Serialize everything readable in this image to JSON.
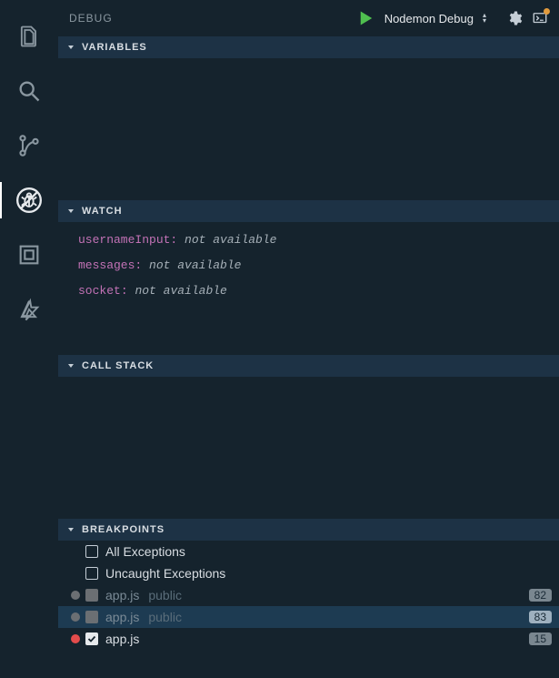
{
  "colors": {
    "bg": "#15232d",
    "section_header_bg": "#1d3245",
    "selected_row_bg": "#1d3b52",
    "text": "#c5ced6",
    "muted": "#8a97a0",
    "watch_name": "#c372b6",
    "run_green": "#4fbf4f",
    "dot_orange": "#e29b3d",
    "dot_red": "#e34c4c",
    "dot_grey": "#6b6f73",
    "line_badge_bg": "#7a8790"
  },
  "activitybar": {
    "items": [
      {
        "name": "explorer-icon",
        "active": false
      },
      {
        "name": "search-icon",
        "active": false
      },
      {
        "name": "source-control-icon",
        "active": false
      },
      {
        "name": "debug-icon",
        "active": true
      },
      {
        "name": "extensions-icon",
        "active": false
      },
      {
        "name": "azure-icon",
        "active": false
      }
    ]
  },
  "header": {
    "title": "DEBUG",
    "config_selected": "Nodemon Debug",
    "gear_title": "settings",
    "console_title": "debug-console"
  },
  "sections": {
    "variables": {
      "title": "VARIABLES",
      "expanded": true,
      "items": []
    },
    "watch": {
      "title": "WATCH",
      "expanded": true,
      "items": [
        {
          "name": "usernameInput",
          "value": "not available"
        },
        {
          "name": "messages",
          "value": "not available"
        },
        {
          "name": "socket",
          "value": "not available"
        }
      ]
    },
    "callstack": {
      "title": "CALL STACK",
      "expanded": true,
      "items": []
    },
    "breakpoints": {
      "title": "BREAKPOINTS",
      "expanded": true,
      "items": [
        {
          "dot": "none",
          "checked": false,
          "check_style": "empty",
          "label": "All Exceptions",
          "path": "",
          "line": "",
          "selected": false
        },
        {
          "dot": "none",
          "checked": false,
          "check_style": "empty",
          "label": "Uncaught Exceptions",
          "path": "",
          "line": "",
          "selected": false
        },
        {
          "dot": "grey",
          "checked": false,
          "check_style": "filled-grey",
          "label": "app.js",
          "path": "public",
          "line": "82",
          "selected": false
        },
        {
          "dot": "grey",
          "checked": false,
          "check_style": "filled-grey",
          "label": "app.js",
          "path": "public",
          "line": "83",
          "selected": true
        },
        {
          "dot": "red",
          "checked": true,
          "check_style": "filled-white",
          "label": "app.js",
          "path": "",
          "line": "15",
          "selected": false
        }
      ]
    }
  }
}
